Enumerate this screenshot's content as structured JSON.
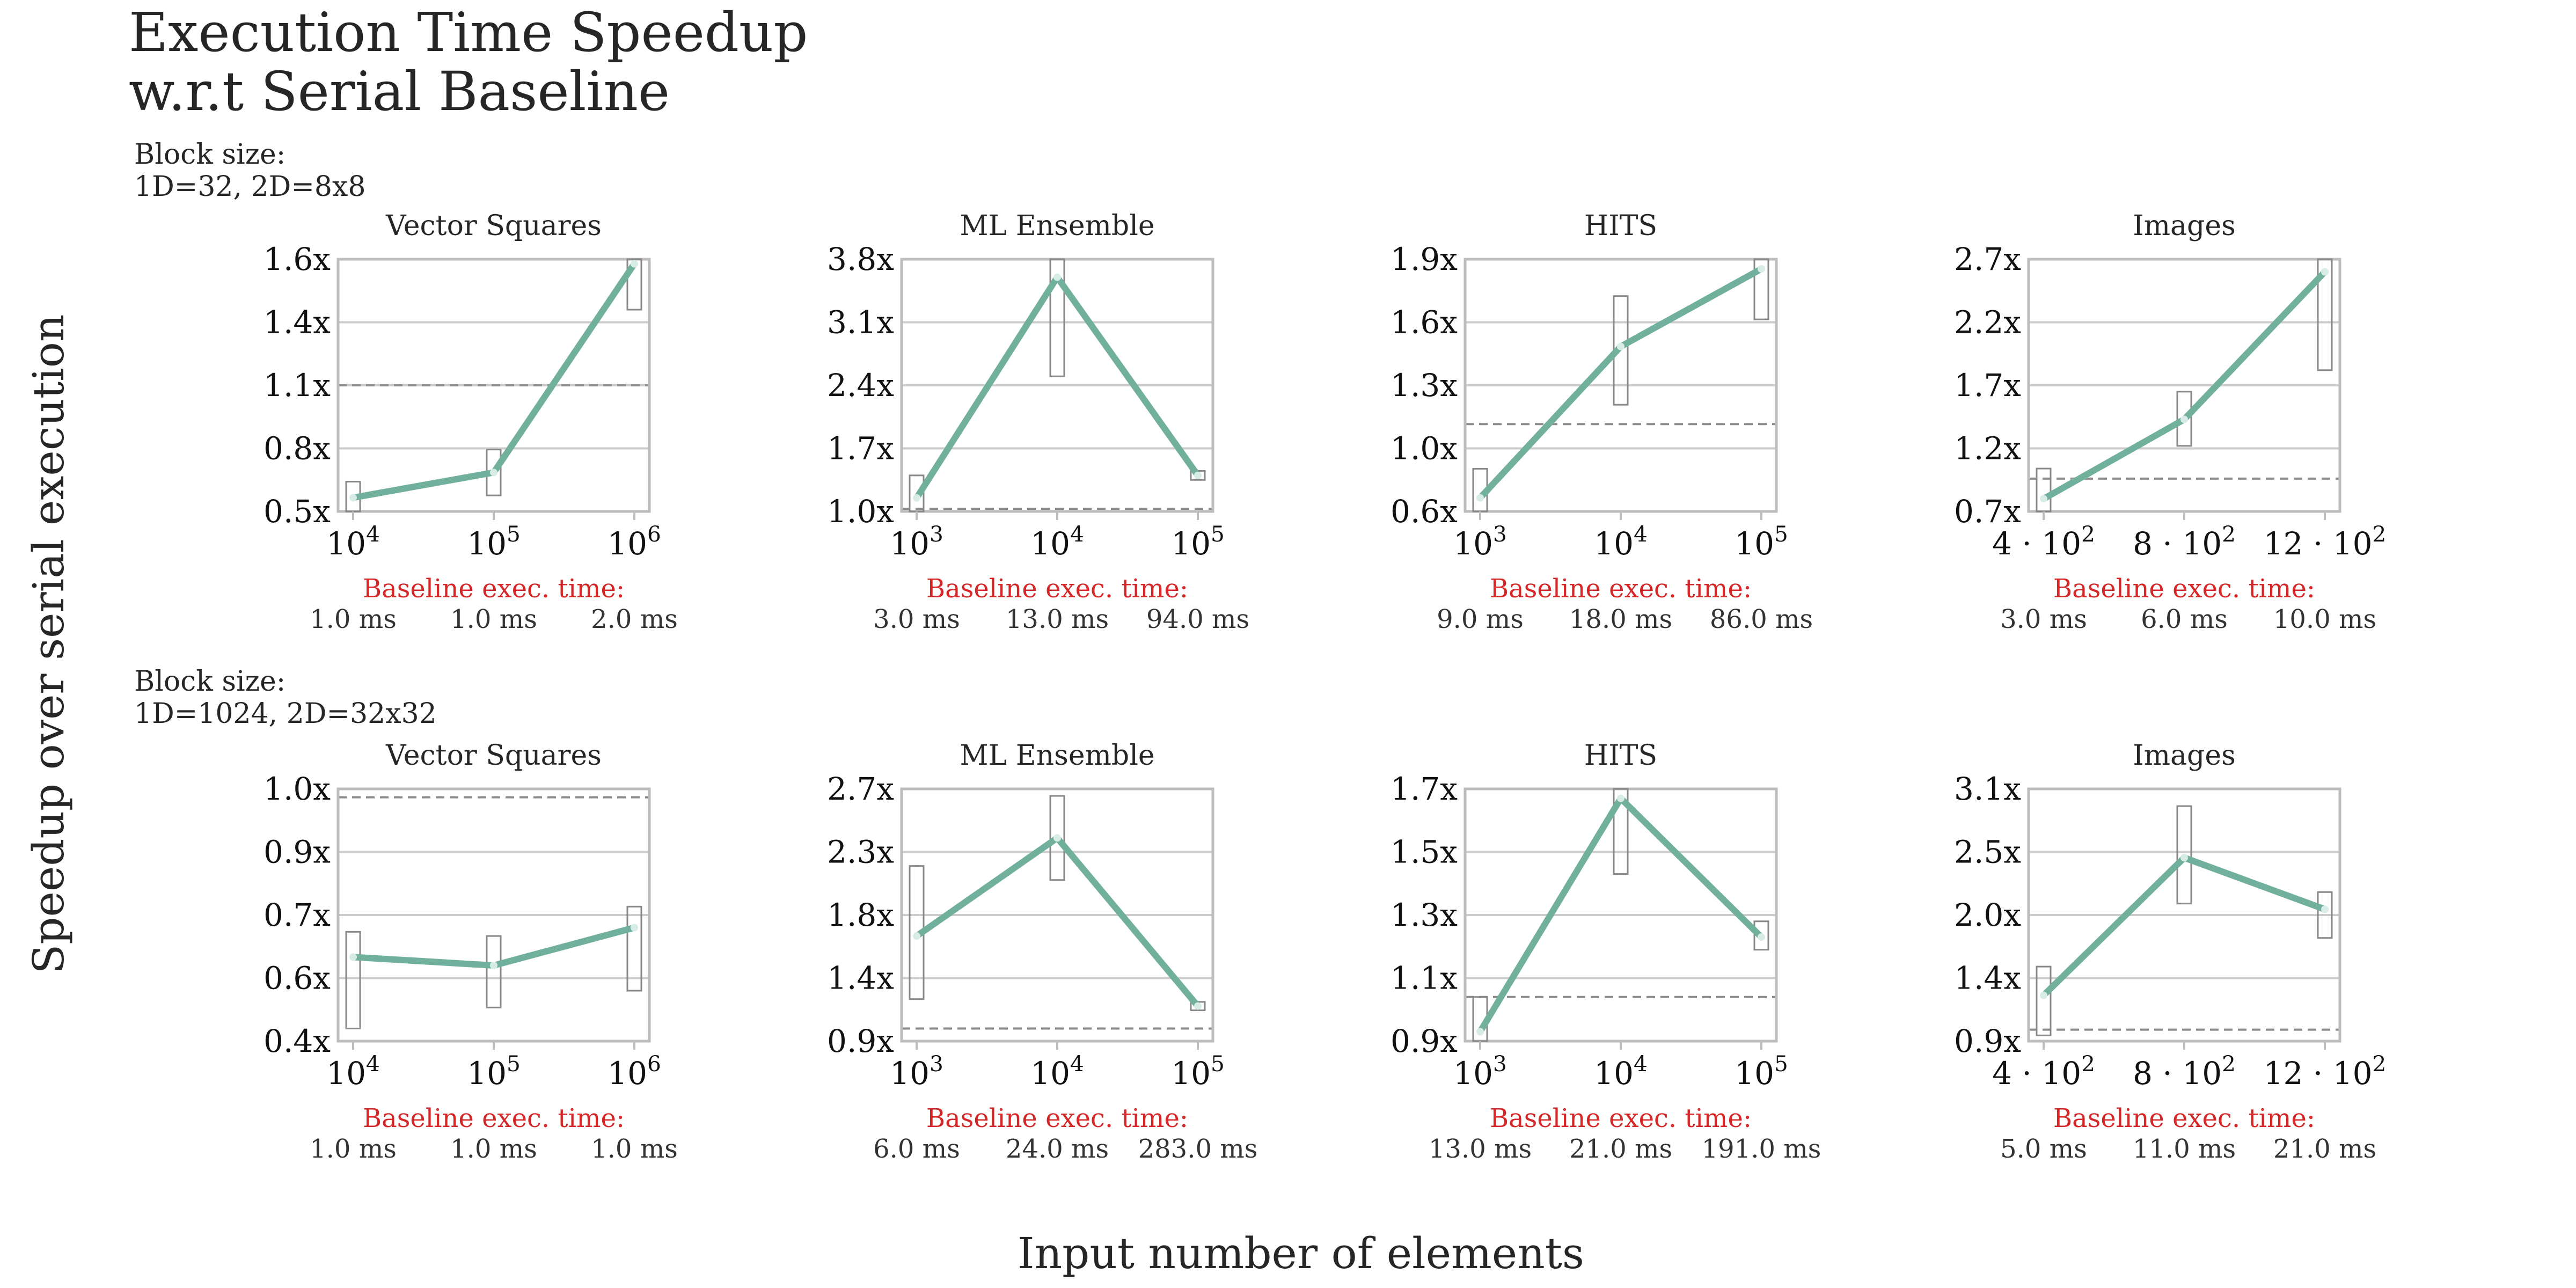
{
  "figure": {
    "title_line1": "Execution Time Speedup",
    "title_line2": "w.r.t Serial Baseline",
    "ylabel": "Speedup over serial execution",
    "xlabel": "Input number of elements",
    "baseline_label": "Baseline exec. time:",
    "colors": {
      "line": "#72b09e",
      "dashed": "#8c8c8c",
      "grid": "#cccccc",
      "axes": "#bdbdbd",
      "box": "#888888",
      "baseline_label": "#d62728"
    }
  },
  "rows": [
    {
      "block_label_line1": "Block size:",
      "block_label_line2": "1D=32, 2D=8x8"
    },
    {
      "block_label_line1": "Block size:",
      "block_label_line2": "1D=1024, 2D=32x32"
    }
  ],
  "chart_data": [
    {
      "type": "line",
      "row": 0,
      "col": 0,
      "title": "Vector Squares",
      "x_ticks": [
        "10^4",
        "10^5",
        "10^6"
      ],
      "y_ticks": [
        "0.5x",
        "0.8x",
        "1.1x",
        "1.4x",
        "1.6x"
      ],
      "ylim": [
        0.5,
        1.6
      ],
      "values": [
        0.56,
        0.67,
        1.58
      ],
      "ranges": [
        [
          0.5,
          0.63
        ],
        [
          0.57,
          0.77
        ],
        [
          1.38,
          1.6
        ]
      ],
      "baseline_line": 1.05,
      "baseline_times": [
        "1.0 ms",
        "1.0 ms",
        "2.0 ms"
      ]
    },
    {
      "type": "line",
      "row": 0,
      "col": 1,
      "title": "ML Ensemble",
      "x_ticks": [
        "10^3",
        "10^4",
        "10^5"
      ],
      "y_ticks": [
        "1.0x",
        "1.7x",
        "2.4x",
        "3.1x",
        "3.8x"
      ],
      "ylim": [
        1.0,
        3.8
      ],
      "values": [
        1.15,
        3.6,
        1.4
      ],
      "ranges": [
        [
          1.0,
          1.4
        ],
        [
          2.5,
          3.8
        ],
        [
          1.35,
          1.45
        ]
      ],
      "baseline_line": 1.03,
      "baseline_times": [
        "3.0 ms",
        "13.0 ms",
        "94.0 ms"
      ]
    },
    {
      "type": "line",
      "row": 0,
      "col": 2,
      "title": "HITS",
      "x_ticks": [
        "10^3",
        "10^4",
        "10^5"
      ],
      "y_ticks": [
        "0.6x",
        "1.0x",
        "1.3x",
        "1.6x",
        "1.9x"
      ],
      "ylim": [
        0.6,
        1.9
      ],
      "values": [
        0.67,
        1.45,
        1.85
      ],
      "ranges": [
        [
          0.6,
          0.82
        ],
        [
          1.15,
          1.71
        ],
        [
          1.59,
          1.9
        ]
      ],
      "baseline_line": 1.05,
      "baseline_times": [
        "9.0 ms",
        "18.0 ms",
        "86.0 ms"
      ]
    },
    {
      "type": "line",
      "row": 0,
      "col": 3,
      "title": "Images",
      "x_ticks": [
        "4 · 10^2",
        "8 · 10^2",
        "12 · 10^2"
      ],
      "y_ticks": [
        "0.7x",
        "1.2x",
        "1.7x",
        "2.2x",
        "2.7x"
      ],
      "ylim": [
        0.7,
        2.7
      ],
      "values": [
        0.8,
        1.43,
        2.6
      ],
      "ranges": [
        [
          0.7,
          1.04
        ],
        [
          1.22,
          1.65
        ],
        [
          1.82,
          2.7
        ]
      ],
      "baseline_line": 0.96,
      "baseline_times": [
        "3.0 ms",
        "6.0 ms",
        "10.0 ms"
      ]
    },
    {
      "type": "line",
      "row": 1,
      "col": 0,
      "title": "Vector Squares",
      "x_ticks": [
        "10^4",
        "10^5",
        "10^6"
      ],
      "y_ticks": [
        "0.4x",
        "0.6x",
        "0.7x",
        "0.9x",
        "1.0x"
      ],
      "ylim": [
        0.4,
        1.0
      ],
      "values": [
        0.6,
        0.58,
        0.67
      ],
      "ranges": [
        [
          0.43,
          0.66
        ],
        [
          0.48,
          0.65
        ],
        [
          0.52,
          0.72
        ]
      ],
      "baseline_line": 0.98,
      "baseline_times": [
        "1.0 ms",
        "1.0 ms",
        "1.0 ms"
      ]
    },
    {
      "type": "line",
      "row": 1,
      "col": 1,
      "title": "ML Ensemble",
      "x_ticks": [
        "10^3",
        "10^4",
        "10^5"
      ],
      "y_ticks": [
        "0.9x",
        "1.4x",
        "1.8x",
        "2.3x",
        "2.7x"
      ],
      "ylim": [
        0.9,
        2.7
      ],
      "values": [
        1.65,
        2.35,
        1.15
      ],
      "ranges": [
        [
          1.2,
          2.15
        ],
        [
          2.05,
          2.65
        ],
        [
          1.12,
          1.18
        ]
      ],
      "baseline_line": 0.99,
      "baseline_times": [
        "6.0 ms",
        "24.0 ms",
        "283.0 ms"
      ]
    },
    {
      "type": "line",
      "row": 1,
      "col": 2,
      "title": "HITS",
      "x_ticks": [
        "10^3",
        "10^4",
        "10^5"
      ],
      "y_ticks": [
        "0.9x",
        "1.1x",
        "1.3x",
        "1.5x",
        "1.7x"
      ],
      "ylim": [
        0.9,
        1.7
      ],
      "values": [
        0.93,
        1.67,
        1.23
      ],
      "ranges": [
        [
          0.9,
          1.04
        ],
        [
          1.43,
          1.7
        ],
        [
          1.19,
          1.28
        ]
      ],
      "baseline_line": 1.04,
      "baseline_times": [
        "13.0 ms",
        "21.0 ms",
        "191.0 ms"
      ]
    },
    {
      "type": "line",
      "row": 1,
      "col": 3,
      "title": "Images",
      "x_ticks": [
        "4 · 10^2",
        "8 · 10^2",
        "12 · 10^2"
      ],
      "y_ticks": [
        "0.9x",
        "1.4x",
        "2.0x",
        "2.5x",
        "3.1x"
      ],
      "ylim": [
        0.9,
        3.1
      ],
      "values": [
        1.3,
        2.5,
        2.05
      ],
      "ranges": [
        [
          0.95,
          1.55
        ],
        [
          2.1,
          2.95
        ],
        [
          1.8,
          2.2
        ]
      ],
      "baseline_line": 1.0,
      "baseline_times": [
        "5.0 ms",
        "11.0 ms",
        "21.0 ms"
      ]
    }
  ]
}
